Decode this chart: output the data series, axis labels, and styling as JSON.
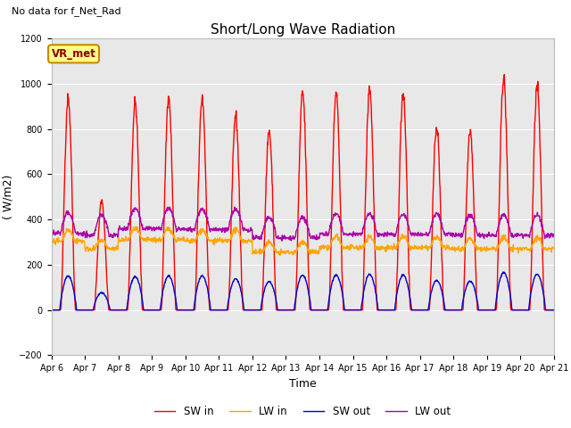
{
  "title": "Short/Long Wave Radiation",
  "xlabel": "Time",
  "ylabel": "( W/m2)",
  "ylim": [
    -200,
    1200
  ],
  "yticks": [
    -200,
    0,
    200,
    400,
    600,
    800,
    1000,
    1200
  ],
  "x_tick_labels": [
    "Apr 6",
    "Apr 7",
    "Apr 8",
    "Apr 9",
    "Apr 10",
    "Apr 11",
    "Apr 12",
    "Apr 13",
    "Apr 14",
    "Apr 15",
    "Apr 16",
    "Apr 17",
    "Apr 18",
    "Apr 19",
    "Apr 20",
    "Apr 21"
  ],
  "note_text": "No data for f_Net_Rad",
  "station_label": "VR_met",
  "fig_bg_color": "#ffffff",
  "plot_bg_color": "#e8e8e8",
  "sw_in_color": "#ff0000",
  "lw_in_color": "#ffa500",
  "sw_out_color": "#0000cc",
  "lw_out_color": "#aa00aa",
  "legend_labels": [
    "SW in",
    "LW in",
    "SW out",
    "LW out"
  ],
  "line_width": 1.0,
  "title_fontsize": 11,
  "axis_fontsize": 9,
  "tick_fontsize": 7,
  "sw_in_peaks": [
    940,
    480,
    920,
    940,
    940,
    860,
    790,
    960,
    960,
    980,
    960,
    810,
    800,
    1030,
    990
  ]
}
